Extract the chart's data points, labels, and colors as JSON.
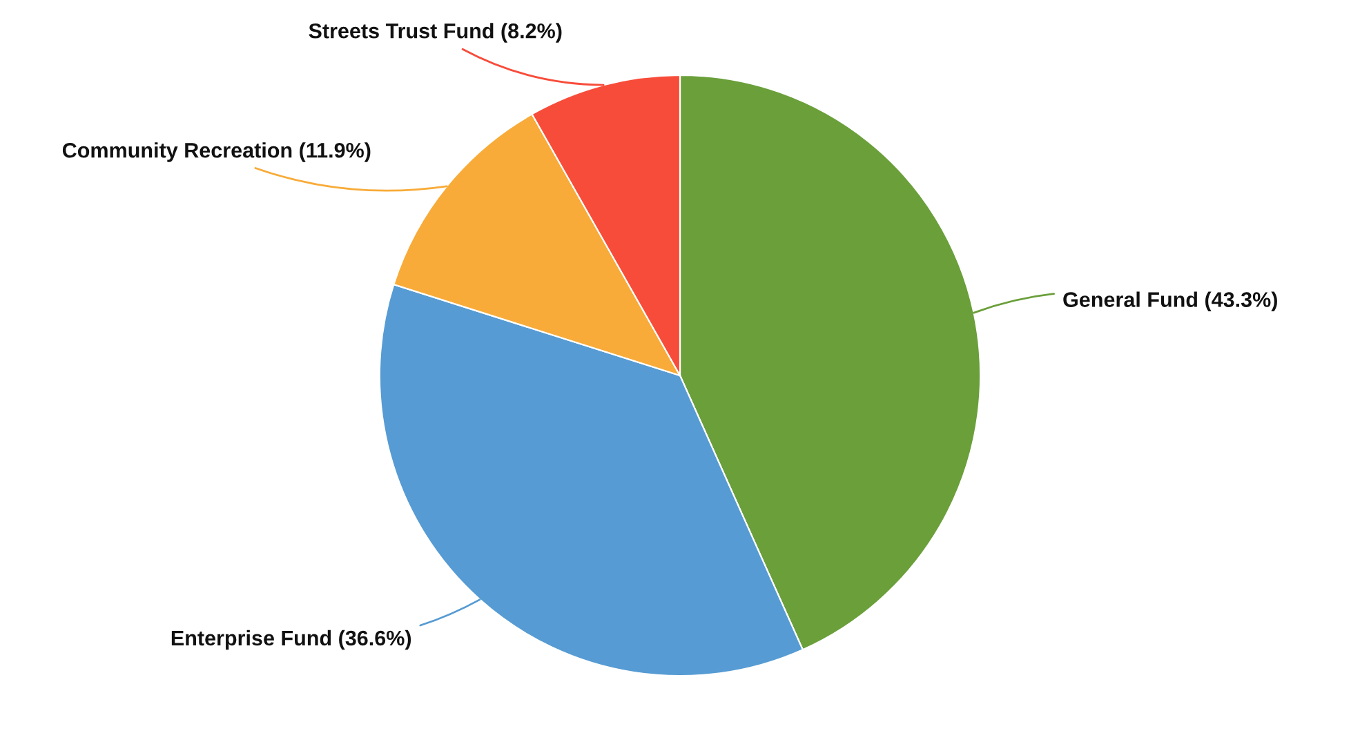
{
  "chart_data": {
    "type": "pie",
    "categories": [
      "General Fund (43.3%)",
      "Enterprise Fund (36.6%)",
      "Community Recreation (11.9%)",
      "Streets Trust Fund (8.2%)"
    ],
    "values": [
      43.3,
      36.6,
      11.9,
      8.2
    ],
    "colors": [
      "#6a9f3a",
      "#569bd3",
      "#f8ab38",
      "#f84c3a"
    ]
  }
}
